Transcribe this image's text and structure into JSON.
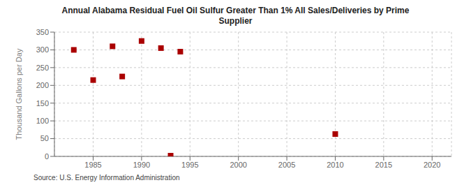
{
  "chart_data": {
    "type": "scatter",
    "title": "Annual Alabama Residual Fuel Oil Sulfur Greater Than 1% All Sales/Deliveries by Prime\nSupplier",
    "y_label": "Thousand Gallons per Day",
    "annotations": [
      "Source: U.S. Energy Information Administration"
    ],
    "x": [
      1983,
      1985,
      1987,
      1988,
      1990,
      1992,
      1993,
      1994,
      2010
    ],
    "values": [
      300,
      215,
      310,
      225,
      325,
      305,
      2,
      295,
      63
    ],
    "color": "#aa0000",
    "marker": "square",
    "xlim": [
      1981,
      2022
    ],
    "ylim": [
      0,
      350
    ],
    "xticks": [
      1985,
      1990,
      1995,
      2000,
      2005,
      2010,
      2015,
      2020
    ],
    "yticks": [
      0,
      50,
      100,
      150,
      200,
      250,
      300,
      350
    ],
    "grid": true
  }
}
